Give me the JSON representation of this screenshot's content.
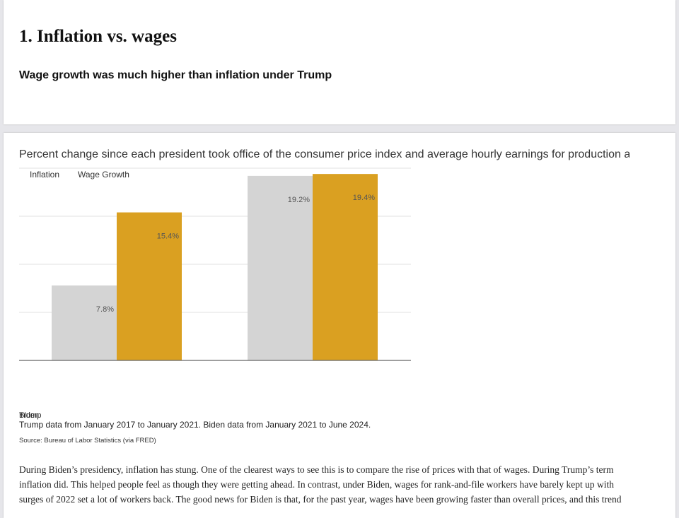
{
  "header": {
    "title": "1. Inflation vs. wages",
    "subtitle": "Wage growth was much higher than inflation under Trump"
  },
  "chart_data": {
    "type": "bar",
    "subtitle": "Percent change since each president took office of the consumer price index and average hourly earnings for production and n",
    "categories": [
      "Trump",
      "Biden"
    ],
    "series": [
      {
        "name": "Inflation",
        "color": "#d4d4d4",
        "values": [
          7.8,
          19.2
        ],
        "value_labels": [
          "7.8%",
          "19.2%"
        ]
      },
      {
        "name": "Wage Growth",
        "color": "#daa021",
        "values": [
          15.4,
          19.4
        ],
        "value_labels": [
          "15.4%",
          "19.4%"
        ]
      }
    ],
    "ylim": [
      0,
      20
    ],
    "yticks": [
      0,
      5,
      10,
      15,
      20
    ],
    "grid": true,
    "note": "Trump data from January 2017 to January 2021. Biden data from January 2021 to June 2024.",
    "source": "Source: Bureau of Labor Statistics (via FRED)"
  },
  "article": {
    "lines": [
      "During Biden’s presidency, inflation has stung. One of the clearest ways to see this is to compare the rise of prices with that of wages. During Trump’s term",
      "inflation did. This helped people feel as though they were getting ahead. In contrast, under Biden, wages for rank-and-file workers have barely kept up with",
      "surges of 2022 set a lot of workers back. The good news for Biden is that, for the past year, wages have been growing faster than overall prices, and this trend"
    ]
  }
}
